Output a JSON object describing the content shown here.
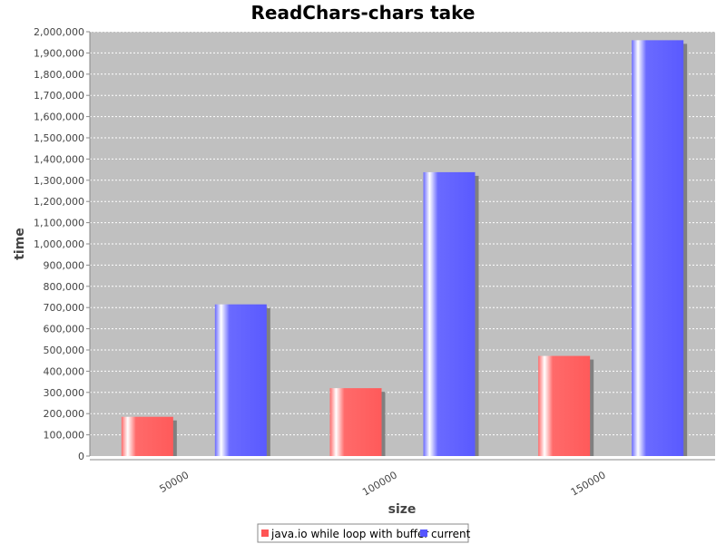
{
  "chart_data": {
    "type": "bar",
    "title": "ReadChars-chars take",
    "xlabel": "size",
    "ylabel": "time",
    "categories": [
      "50000",
      "100000",
      "150000"
    ],
    "series": [
      {
        "name": "java.io while loop with buffer",
        "color": "#ff5555",
        "values": [
          185000,
          320000,
          472000
        ]
      },
      {
        "name": "current",
        "color": "#5555ff",
        "values": [
          715000,
          1338000,
          1960000
        ]
      }
    ],
    "ylim": [
      0,
      2000000
    ],
    "ytick_step": 100000,
    "yticks": [
      "0",
      "100,000",
      "200,000",
      "300,000",
      "400,000",
      "500,000",
      "600,000",
      "700,000",
      "800,000",
      "900,000",
      "1,000,000",
      "1,100,000",
      "1,200,000",
      "1,300,000",
      "1,400,000",
      "1,500,000",
      "1,600,000",
      "1,700,000",
      "1,800,000",
      "1,900,000",
      "2,000,000"
    ],
    "grid": true,
    "plot_background": "#c0c0c0",
    "legend_position": "bottom"
  }
}
